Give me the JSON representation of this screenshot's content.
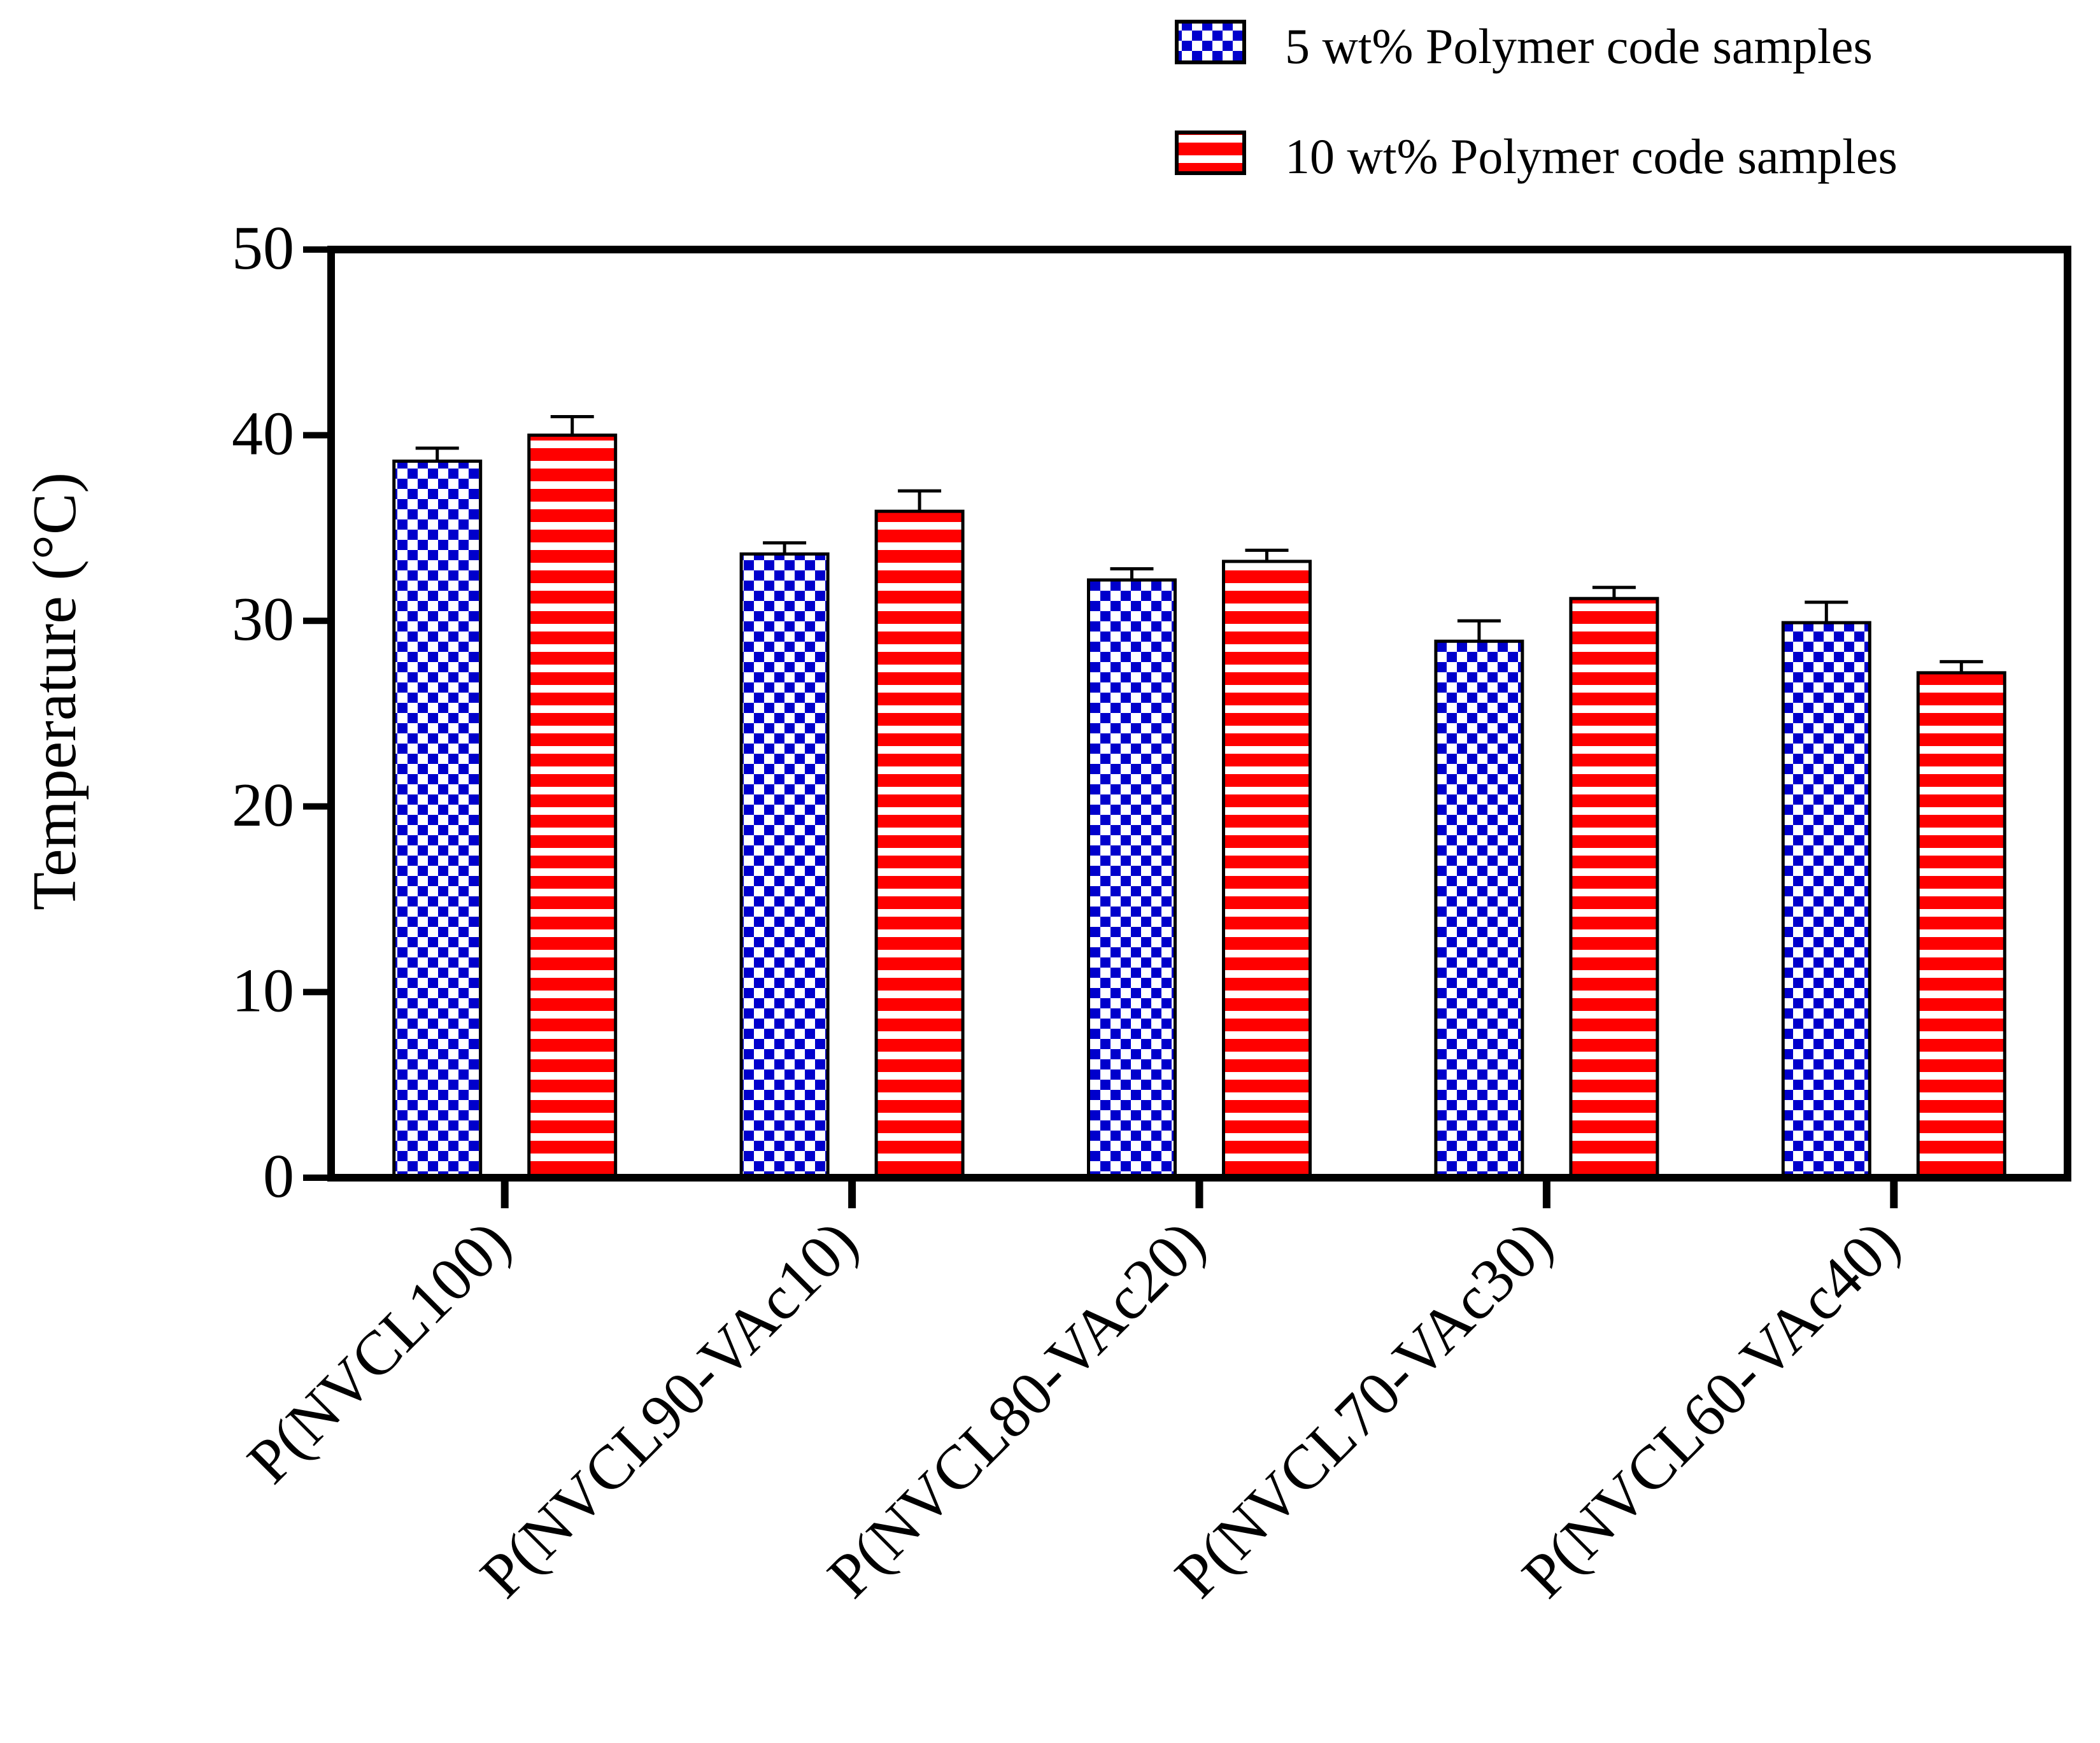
{
  "chart_data": {
    "type": "bar",
    "title": "",
    "xlabel": "",
    "ylabel": "Temperature (°C)",
    "ylim": [
      0,
      50
    ],
    "yticks": [
      0,
      10,
      20,
      30,
      40,
      50
    ],
    "grid": false,
    "legend_position": "top-right",
    "categories": [
      "P(NVCL100)",
      "P(NVCL90-VAc10)",
      "P(NVCL80-VAc20)",
      "P(NVCL70-VAc30)",
      "P(NVCL60-VAc40)"
    ],
    "series": [
      {
        "name": "5 wt% Polymer code samples",
        "values": [
          38.6,
          33.6,
          32.2,
          28.9,
          29.9
        ],
        "errors": [
          0.7,
          0.6,
          0.6,
          1.1,
          1.1
        ],
        "color": "#0000cc",
        "pattern": "checkerboard"
      },
      {
        "name": "10 wt% Polymer code samples",
        "values": [
          40.0,
          35.9,
          33.2,
          31.2,
          27.2
        ],
        "errors": [
          1.0,
          1.1,
          0.6,
          0.6,
          0.6
        ],
        "color": "#ff0000",
        "pattern": "horizontal-stripes"
      }
    ]
  }
}
